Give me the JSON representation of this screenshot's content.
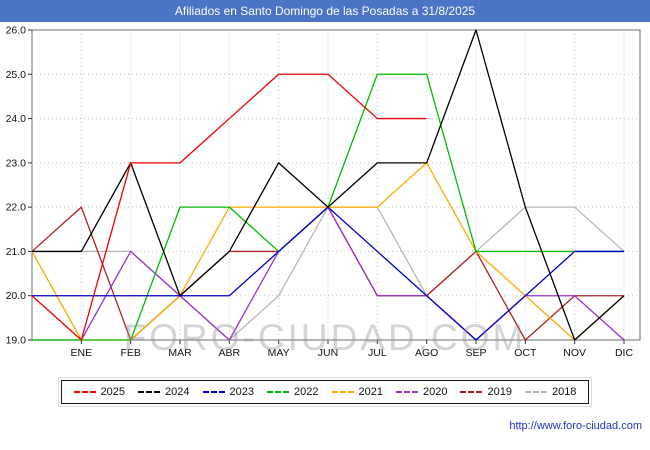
{
  "title_bar": {
    "title": "Afiliados en Santo Domingo de las Posadas a 31/8/2025"
  },
  "watermark": "FORO-CIUDAD.COM",
  "footer": {
    "url": "http://www.foro-ciudad.com"
  },
  "chart_data": {
    "type": "line",
    "title": "Afiliados en Santo Domingo de las Posadas a 31/8/2025",
    "x_labels": [
      "ENE",
      "FEB",
      "MAR",
      "ABR",
      "MAY",
      "JUN",
      "JUL",
      "AGO",
      "SEP",
      "OCT",
      "NOV",
      "DIC"
    ],
    "ylim": [
      19,
      26
    ],
    "y_ticks": [
      "19.0",
      "20.0",
      "21.0",
      "22.0",
      "23.0",
      "24.0",
      "25.0",
      "26.0"
    ],
    "grid": true,
    "legend_position": "bottom",
    "series": [
      {
        "name": "2025",
        "color": "#ee0000",
        "left_edge_value": 20,
        "values": [
          19,
          23,
          23,
          24,
          25,
          25,
          24,
          24
        ]
      },
      {
        "name": "2024",
        "color": "#000000",
        "left_edge_value": 21,
        "values": [
          21,
          23,
          20,
          21,
          23,
          22,
          23,
          23,
          26,
          22,
          19,
          20
        ]
      },
      {
        "name": "2023",
        "color": "#0000cc",
        "left_edge_value": 20,
        "values": [
          20,
          20,
          20,
          20,
          21,
          22,
          21,
          20,
          19,
          20,
          21,
          21
        ]
      },
      {
        "name": "2022",
        "color": "#00bb00",
        "left_edge_value": 19,
        "values": [
          19,
          19,
          22,
          22,
          21,
          22,
          25,
          25,
          21,
          21,
          21,
          21
        ]
      },
      {
        "name": "2021",
        "color": "#ffaa00",
        "left_edge_value": 21,
        "values": [
          19,
          19,
          20,
          22,
          22,
          22,
          22,
          23,
          21,
          20,
          19,
          20
        ]
      },
      {
        "name": "2020",
        "color": "#9933cc",
        "left_edge_value": 19,
        "values": [
          19,
          21,
          20,
          19,
          21,
          22,
          20,
          20,
          19,
          20,
          20,
          19
        ]
      },
      {
        "name": "2019",
        "color": "#aa2222",
        "left_edge_value": 21,
        "values": [
          22,
          19,
          20,
          21,
          21,
          22,
          20,
          20,
          21,
          19,
          20,
          20
        ]
      },
      {
        "name": "2018",
        "color": "#b8b8b8",
        "left_edge_value": 21,
        "values": [
          21,
          21,
          20,
          19,
          20,
          22,
          22,
          20,
          21,
          22,
          22,
          21
        ]
      }
    ]
  }
}
